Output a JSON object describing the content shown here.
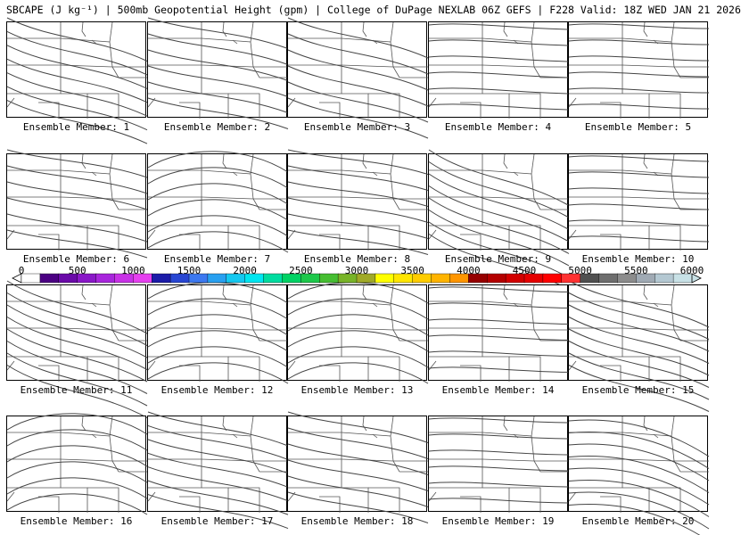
{
  "title": "SBCAPE (J kg⁻¹) | 500mb Geopotential Height (gpm) | College of DuPage NEXLAB 06Z GEFS | F228 Valid: 18Z WED JAN 21 2026",
  "colorbar": {
    "tick_labels": [
      "0",
      "500",
      "1000",
      "1500",
      "2000",
      "2500",
      "3000",
      "3500",
      "4000",
      "4500",
      "5000",
      "5500",
      "6000"
    ],
    "colors": [
      "#ffffff",
      "#4b0082",
      "#6a0aa8",
      "#8a18c8",
      "#a826dc",
      "#c832e6",
      "#e640f0",
      "#1c1ca8",
      "#2846d2",
      "#3c78f0",
      "#28a0f0",
      "#14c8f0",
      "#00e6f0",
      "#00dca0",
      "#00d264",
      "#1ec84b",
      "#46be32",
      "#78b428",
      "#a0aa28",
      "#ffff00",
      "#ffe600",
      "#ffcd00",
      "#ffb400",
      "#ff9600",
      "#960000",
      "#b40000",
      "#d20000",
      "#e60000",
      "#ff0000",
      "#ff3232",
      "#505050",
      "#6e6e6e",
      "#8c8c8c",
      "#a0aab4",
      "#b4c8d2",
      "#c8e1e6"
    ]
  },
  "members": [
    {
      "label": "Ensemble Member: 1"
    },
    {
      "label": "Ensemble Member: 2"
    },
    {
      "label": "Ensemble Member: 3"
    },
    {
      "label": "Ensemble Member: 4"
    },
    {
      "label": "Ensemble Member: 5"
    },
    {
      "label": "Ensemble Member: 6"
    },
    {
      "label": "Ensemble Member: 7"
    },
    {
      "label": "Ensemble Member: 8"
    },
    {
      "label": "Ensemble Member: 9"
    },
    {
      "label": "Ensemble Member: 10"
    },
    {
      "label": "Ensemble Member: 11"
    },
    {
      "label": "Ensemble Member: 12"
    },
    {
      "label": "Ensemble Member: 13"
    },
    {
      "label": "Ensemble Member: 14"
    },
    {
      "label": "Ensemble Member: 15"
    },
    {
      "label": "Ensemble Member: 16"
    },
    {
      "label": "Ensemble Member: 17"
    },
    {
      "label": "Ensemble Member: 18"
    },
    {
      "label": "Ensemble Member: 19"
    },
    {
      "label": "Ensemble Member: 20"
    }
  ]
}
